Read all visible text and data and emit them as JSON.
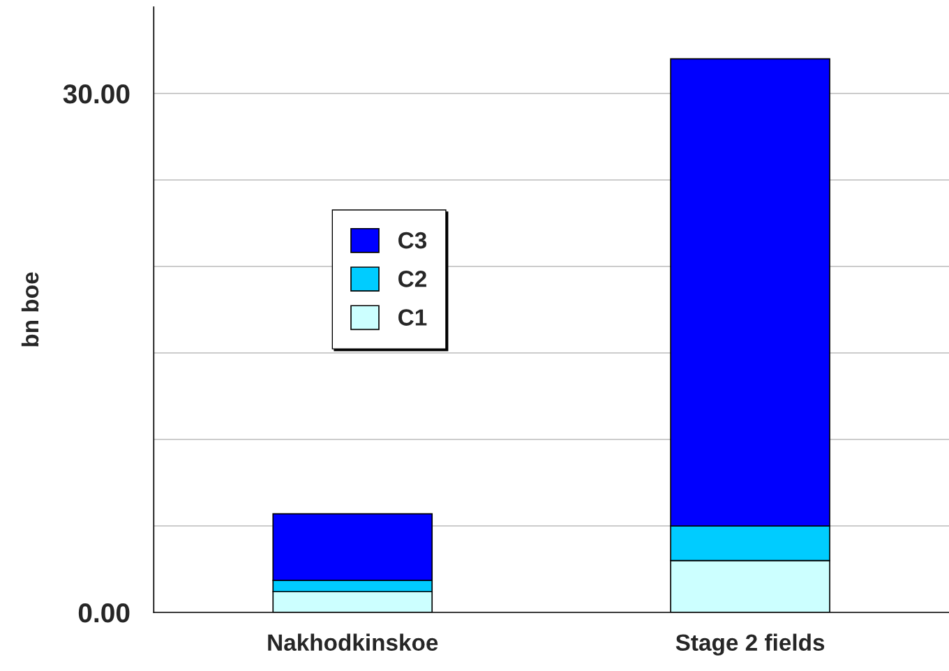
{
  "chart_data": {
    "type": "bar",
    "stacked": true,
    "ylabel": "bn boe",
    "categories": [
      "Nakhodkinskoe",
      "Stage 2 fields"
    ],
    "series": [
      {
        "name": "C1",
        "color": "#ccffff",
        "values": [
          1.2,
          3.0
        ]
      },
      {
        "name": "C2",
        "color": "#00ccff",
        "values": [
          0.65,
          2.0
        ]
      },
      {
        "name": "C3",
        "color": "#0000ff",
        "values": [
          3.85,
          27.0
        ]
      }
    ],
    "ylim": [
      0,
      35
    ],
    "yticks": [
      {
        "value": 0,
        "label": "0.00"
      },
      {
        "value": 5,
        "label": null
      },
      {
        "value": 10,
        "label": null
      },
      {
        "value": 15,
        "label": null
      },
      {
        "value": 20,
        "label": null
      },
      {
        "value": 25,
        "label": null
      },
      {
        "value": 30,
        "label": "30.00"
      }
    ],
    "grid": "y",
    "legend": "center left"
  }
}
